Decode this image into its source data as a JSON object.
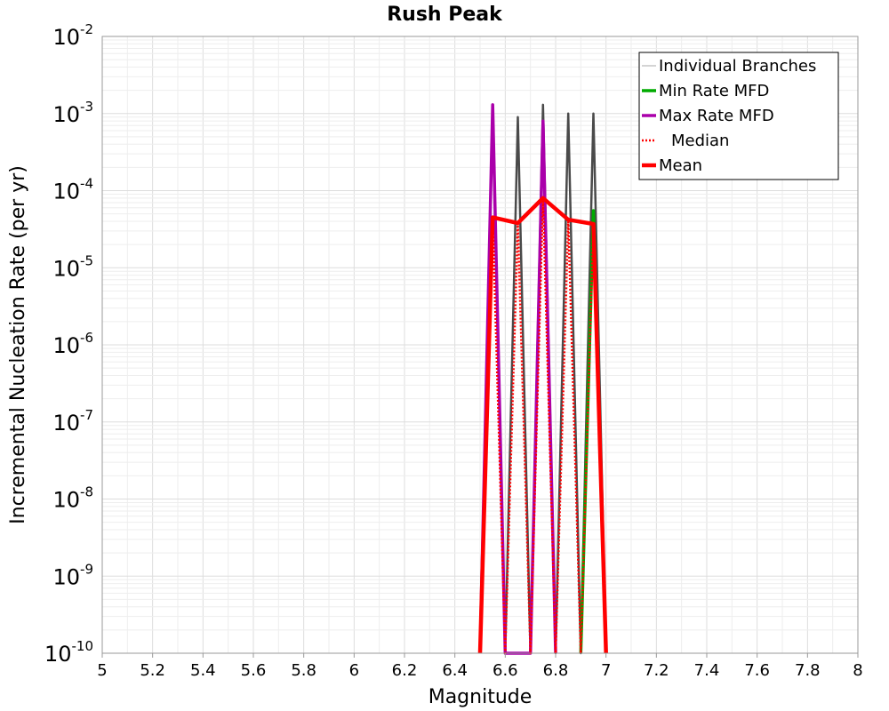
{
  "chart_data": {
    "type": "line",
    "title": "Rush Peak",
    "xlabel": "Magnitude",
    "ylabel": "Incremental Nucleation Rate (per yr)",
    "xlim": [
      5,
      8
    ],
    "ylim": [
      1e-10,
      0.01
    ],
    "yscale": "log",
    "x_ticks": [
      "5",
      "5.2",
      "5.4",
      "5.6",
      "5.8",
      "6",
      "6.2",
      "6.4",
      "6.6",
      "6.8",
      "7",
      "7.2",
      "7.4",
      "7.6",
      "7.8",
      "8"
    ],
    "y_tick_exponents": [
      "-2",
      "-3",
      "-4",
      "-5",
      "-6",
      "-7",
      "-8",
      "-9",
      "-10"
    ],
    "y_tick_base": "10",
    "grid": true,
    "legend_position": "top-right",
    "series": [
      {
        "name": "Individual Branches",
        "color": "#4a4a4a",
        "style": "thin",
        "x": [
          6.5,
          6.55,
          6.6,
          6.65,
          6.7,
          6.75,
          6.8,
          6.85,
          6.9,
          6.95,
          7.0
        ],
        "y": [
          1e-10,
          0.0012,
          1e-10,
          0.0009,
          1e-10,
          0.0013,
          1e-10,
          0.001,
          1e-10,
          0.001,
          1e-10
        ]
      },
      {
        "name": "Min Rate MFD",
        "color": "#00aa00",
        "style": "solid",
        "x": [
          6.9,
          6.95,
          7.0
        ],
        "y": [
          1e-10,
          5.5e-05,
          1e-10
        ]
      },
      {
        "name": "Max Rate MFD",
        "color": "#aa00aa",
        "style": "solid",
        "x": [
          6.5,
          6.55,
          6.6,
          6.7,
          6.75,
          6.8
        ],
        "y": [
          1e-10,
          0.0013,
          1e-10,
          1e-10,
          0.0008,
          1e-10
        ]
      },
      {
        "name": "Median",
        "color": "#ff0000",
        "style": "dotted",
        "x": [
          6.5,
          6.55,
          6.6,
          6.65,
          6.7,
          6.75,
          6.8,
          6.85,
          6.9,
          6.95,
          7.0
        ],
        "y": [
          1e-10,
          4.5e-05,
          1e-10,
          3.8e-05,
          1e-10,
          8e-05,
          1e-10,
          4.2e-05,
          1e-10,
          3.7e-05,
          1e-10
        ]
      },
      {
        "name": "Mean",
        "color": "#ff0000",
        "style": "thick",
        "x": [
          6.5,
          6.55,
          6.65,
          6.75,
          6.85,
          6.95,
          7.0
        ],
        "y": [
          1e-10,
          4.5e-05,
          3.8e-05,
          8e-05,
          4.2e-05,
          3.7e-05,
          1e-10
        ]
      }
    ]
  }
}
